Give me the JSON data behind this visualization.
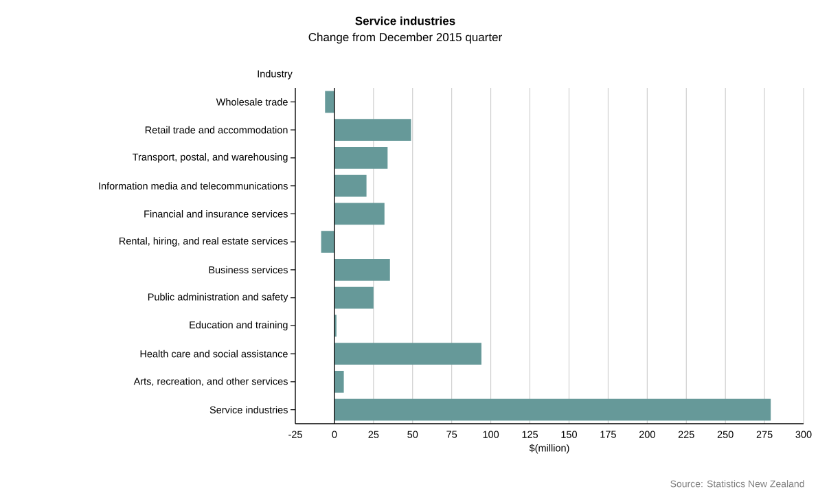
{
  "chart_data": {
    "type": "bar",
    "orientation": "horizontal",
    "title": "Service industries",
    "subtitle": "Change from December 2015 quarter",
    "ylabel": "Industry",
    "xlabel": "$(million)",
    "categories": [
      "Wholesale trade",
      "Retail trade and accommodation",
      "Transport, postal, and warehousing",
      "Information media and telecommunications",
      "Financial and insurance services",
      "Rental, hiring, and real estate services",
      "Business services",
      "Public administration and safety",
      "Education and training",
      "Health care and social assistance",
      "Arts, recreation, and other services",
      "Service industries"
    ],
    "values": [
      -6,
      49,
      34,
      20.5,
      32,
      -8.5,
      35.5,
      25,
      1.3,
      94,
      6,
      279
    ],
    "color": "#669999",
    "xlim": [
      -25,
      300
    ],
    "xticks": [
      -25,
      0,
      25,
      50,
      75,
      100,
      125,
      150,
      175,
      200,
      225,
      250,
      275,
      300
    ],
    "grid": "x",
    "ref_lines": [
      {
        "axis": "x",
        "value": 0,
        "color": "#000000"
      }
    ],
    "annotations": [
      "Source: Statistics New Zealand"
    ]
  }
}
